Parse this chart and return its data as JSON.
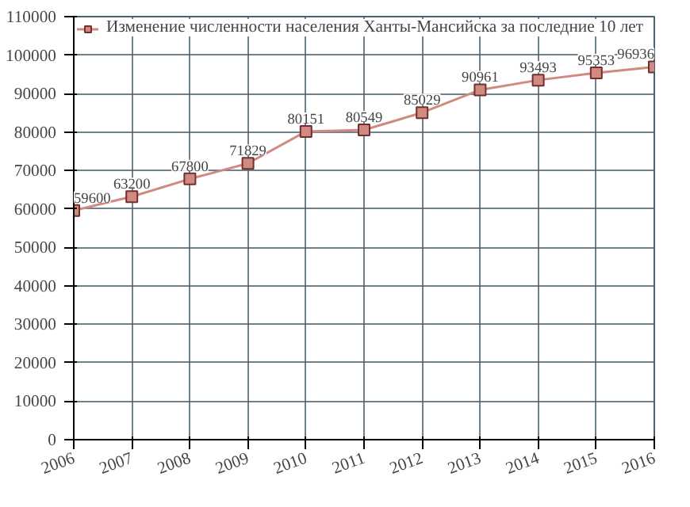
{
  "chart_data": {
    "type": "line",
    "x": [
      2006,
      2007,
      2008,
      2009,
      2010,
      2011,
      2012,
      2013,
      2014,
      2015,
      2016
    ],
    "xlim": [
      2006,
      2016
    ],
    "xticks": [
      2006,
      2007,
      2008,
      2009,
      2010,
      2011,
      2012,
      2013,
      2014,
      2015,
      2016
    ],
    "ylim": [
      0,
      110000
    ],
    "yticks": [
      0,
      10000,
      20000,
      30000,
      40000,
      50000,
      60000,
      70000,
      80000,
      90000,
      100000,
      110000
    ],
    "series": [
      {
        "name": "Изменение численности населения Ханты-Мансийска за последние 10 лет",
        "color": "#d08a80",
        "values": [
          59600,
          63200,
          67800,
          71829,
          80151,
          80549,
          85029,
          90961,
          93493,
          95353,
          96936
        ]
      }
    ],
    "data_labels": true,
    "grid": true,
    "legend": "top left",
    "marker": "square",
    "line_style": "solid"
  }
}
